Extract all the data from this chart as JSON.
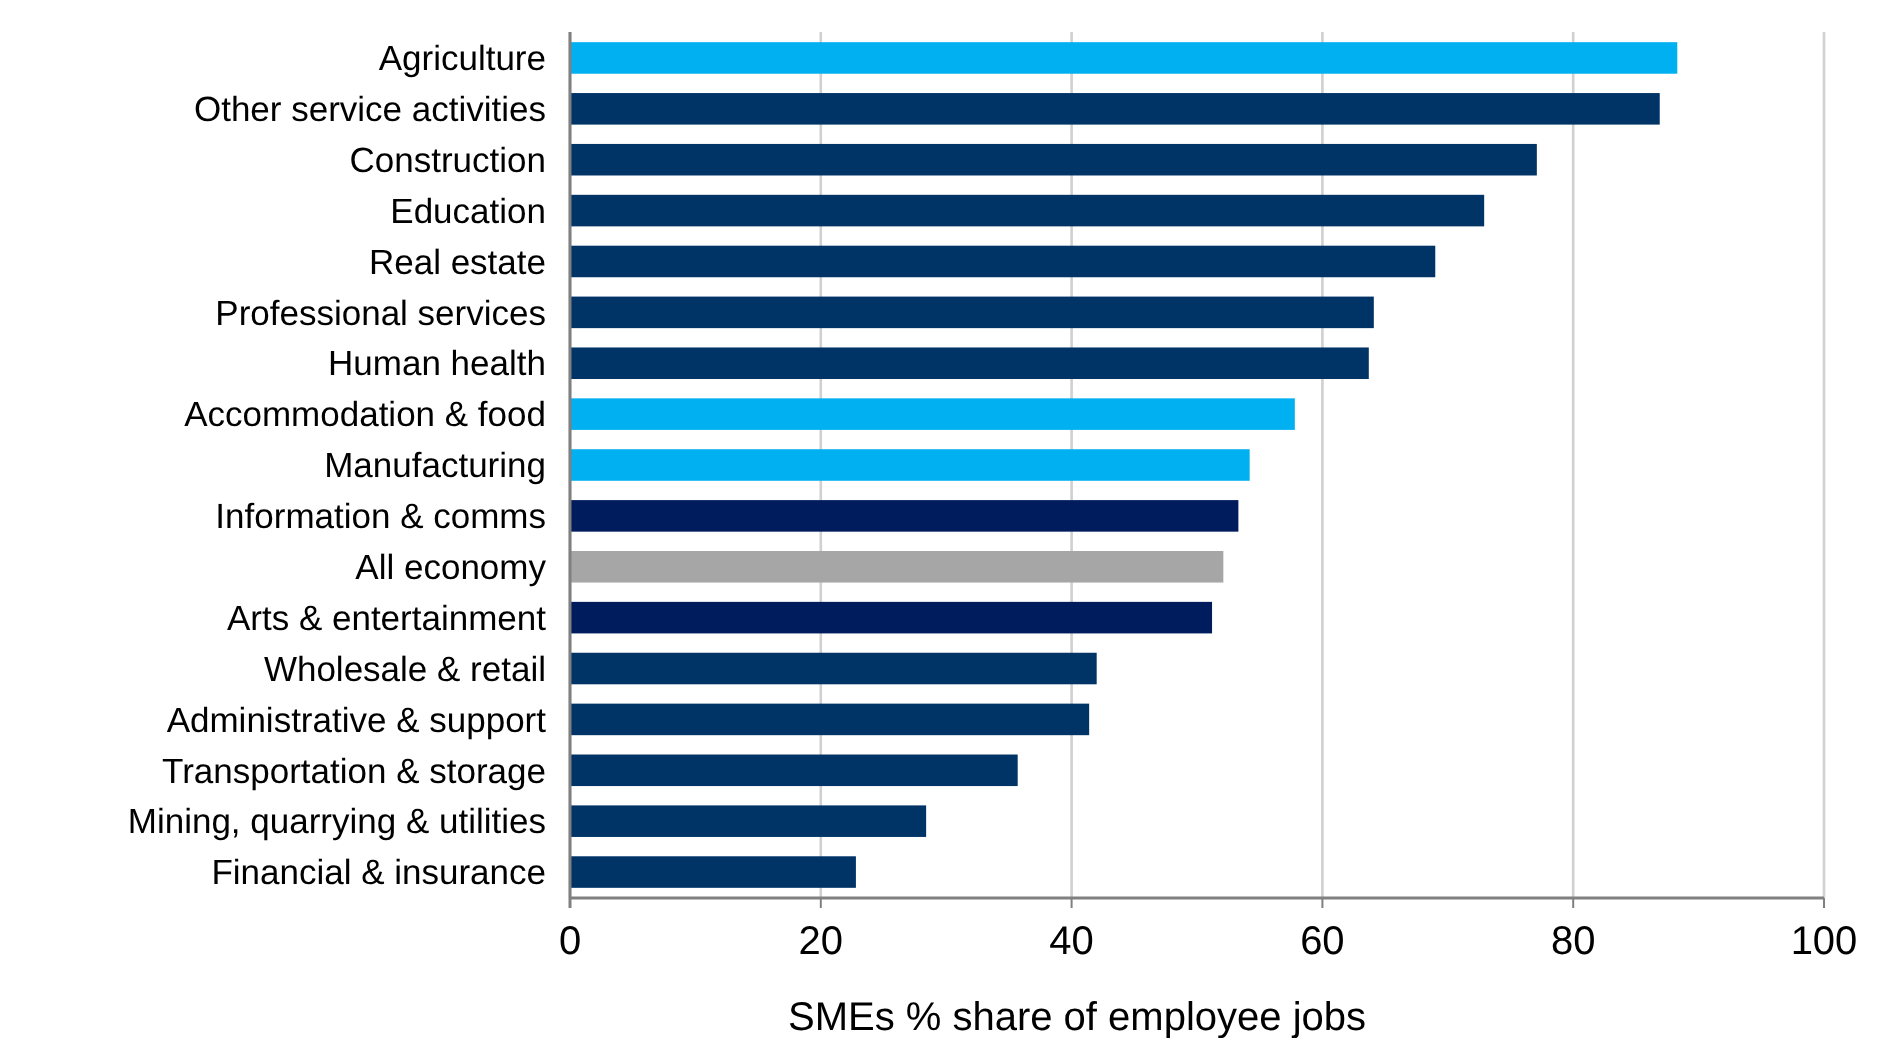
{
  "chart_data": {
    "type": "bar",
    "orientation": "horizontal",
    "xlabel": "SMEs % share of employee jobs",
    "categories": [
      "Agriculture",
      "Other service activities",
      "Construction",
      "Education",
      "Real estate",
      "Professional services",
      "Human health",
      "Accommodation & food",
      "Manufacturing",
      "Information & comms",
      "All economy",
      "Arts & entertainment",
      "Wholesale & retail",
      "Administrative & support",
      "Transportation & storage",
      "Mining, quarrying & utilities",
      "Financial & insurance"
    ],
    "values": [
      88.3,
      86.9,
      77.1,
      72.9,
      69.0,
      64.1,
      63.7,
      57.8,
      54.2,
      53.3,
      52.1,
      51.2,
      42.0,
      41.4,
      35.7,
      28.4,
      22.8
    ],
    "colors": [
      "#00b0f0",
      "#003366",
      "#003366",
      "#003366",
      "#003366",
      "#003366",
      "#003366",
      "#00b0f0",
      "#00b0f0",
      "#001c5c",
      "#a6a6a6",
      "#001c5c",
      "#003366",
      "#003366",
      "#003366",
      "#003366",
      "#003366"
    ],
    "xlim": [
      0,
      100
    ],
    "xticks": [
      0,
      20,
      40,
      60,
      80,
      100
    ],
    "grid": "x"
  }
}
